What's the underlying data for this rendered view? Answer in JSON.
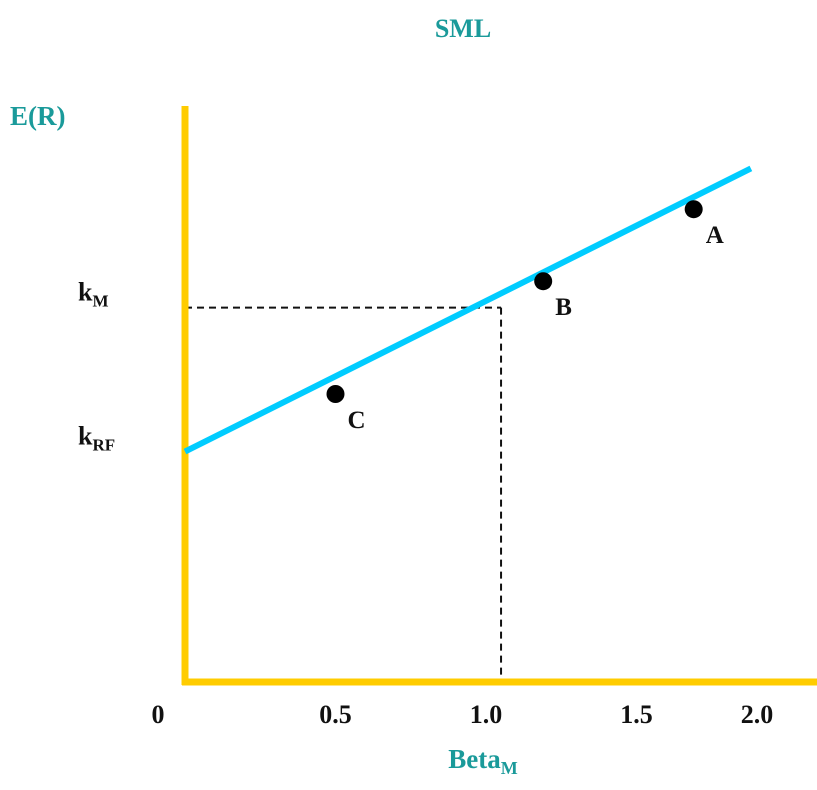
{
  "chart_data": {
    "type": "line",
    "title": "SML",
    "xlabel": {
      "main": "Beta",
      "sub": "M"
    },
    "ylabel": "E(R)",
    "x_ticks": [
      {
        "value": 0,
        "label": "0"
      },
      {
        "value": 0.5,
        "label": "0.5"
      },
      {
        "value": 1.0,
        "label": "1.0"
      },
      {
        "value": 1.5,
        "label": "1.5"
      },
      {
        "value": 2.0,
        "label": "2.0"
      }
    ],
    "y_ticks": [
      {
        "value": 0.48,
        "main": "k",
        "sub": "RF"
      },
      {
        "value": 0.78,
        "main": "k",
        "sub": "M"
      }
    ],
    "xlim": [
      0,
      2.0
    ],
    "ylim": [
      0,
      1.2
    ],
    "series": [
      {
        "x": [
          0,
          1.88
        ],
        "y": [
          0.48,
          1.07
        ]
      }
    ],
    "points": [
      {
        "label": "A",
        "x": 1.69,
        "y": 0.985
      },
      {
        "label": "B",
        "x": 1.19,
        "y": 0.835
      },
      {
        "label": "C",
        "x": 0.5,
        "y": 0.6
      }
    ],
    "reference": {
      "x": 1.05,
      "y": 0.78
    },
    "grid": false,
    "colors": {
      "axis": "#ffcc00",
      "line": "#00ccff",
      "title": "#1a9a9a",
      "text": "#111111"
    }
  }
}
